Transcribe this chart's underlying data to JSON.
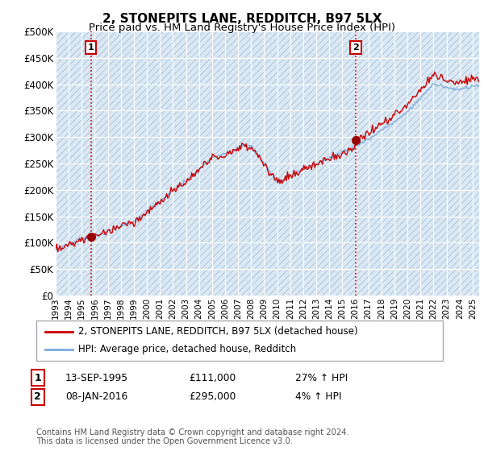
{
  "title": "2, STONEPITS LANE, REDDITCH, B97 5LX",
  "subtitle": "Price paid vs. HM Land Registry's House Price Index (HPI)",
  "title_fontsize": 11,
  "subtitle_fontsize": 9.5,
  "background_color": "#ffffff",
  "plot_bg_color": "#dce9f5",
  "hatch_color": "#b8cfe0",
  "grid_color": "#ffffff",
  "ylim": [
    0,
    500000
  ],
  "yticks": [
    0,
    50000,
    100000,
    150000,
    200000,
    250000,
    300000,
    350000,
    400000,
    450000,
    500000
  ],
  "purchase1_price": 111000,
  "purchase1_label": "1",
  "purchase1_x": 1995.71,
  "purchase2_price": 295000,
  "purchase2_label": "2",
  "purchase2_x": 2016.03,
  "legend_line1": "2, STONEPITS LANE, REDDITCH, B97 5LX (detached house)",
  "legend_line2": "HPI: Average price, detached house, Redditch",
  "note1_label": "1",
  "note1_date": "13-SEP-1995",
  "note1_price": "£111,000",
  "note1_hpi": "27% ↑ HPI",
  "note2_label": "2",
  "note2_date": "08-JAN-2016",
  "note2_price": "£295,000",
  "note2_hpi": "4% ↑ HPI",
  "footer": "Contains HM Land Registry data © Crown copyright and database right 2024.\nThis data is licensed under the Open Government Licence v3.0.",
  "line_color_price": "#cc0000",
  "line_color_hpi": "#7aaadd",
  "marker_color": "#990000",
  "vline_color": "#cc0000",
  "xmin": 1993,
  "xmax": 2025.5,
  "hpi_ratio1": 1.27,
  "hpi_ratio2": 1.04
}
